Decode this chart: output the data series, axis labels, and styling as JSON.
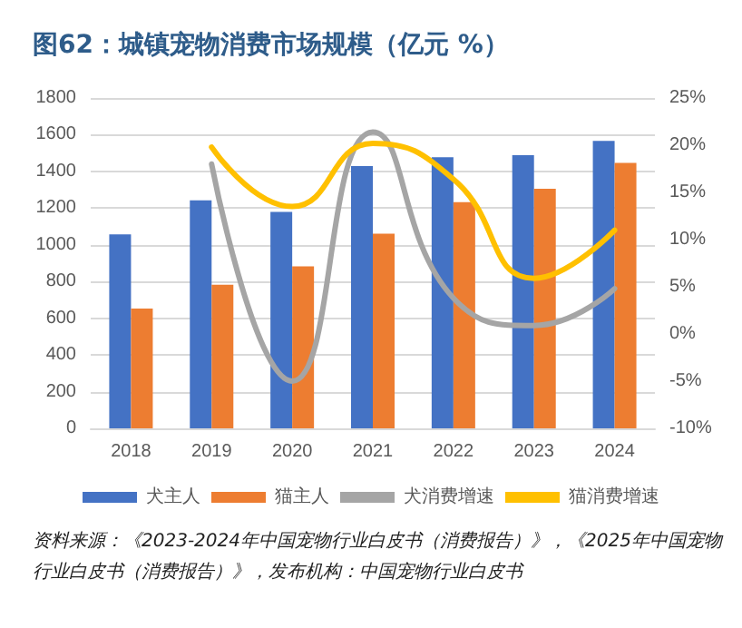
{
  "chart_data": {
    "type": "bar",
    "title": "图62：城镇宠物消费市场规模（亿元  %）",
    "categories": [
      "2018",
      "2019",
      "2020",
      "2021",
      "2022",
      "2023",
      "2024"
    ],
    "series": [
      {
        "name": "犬主人",
        "color": "#4472c4",
        "values": [
          1057,
          1243,
          1180,
          1429,
          1477,
          1488,
          1566
        ]
      },
      {
        "name": "猫主人",
        "color": "#ed7d31",
        "values": [
          653,
          783,
          883,
          1061,
          1232,
          1306,
          1447
        ]
      },
      {
        "name": "犬消费增速",
        "type": "line",
        "axis": "y2",
        "color": "#a5a5a5",
        "values": [
          null,
          18.0,
          -5.0,
          21.4,
          3.8,
          0.9,
          4.8
        ]
      },
      {
        "name": "猫消费增速",
        "type": "line",
        "axis": "y2",
        "color": "#ffc000",
        "values": [
          null,
          19.8,
          13.5,
          20.2,
          16.4,
          5.9,
          11.0
        ]
      }
    ],
    "ylim": [
      0,
      1800
    ],
    "yticks": [
      0,
      200,
      400,
      600,
      800,
      1000,
      1200,
      1400,
      1600,
      1800
    ],
    "y2lim": [
      -10,
      25
    ],
    "y2ticks": [
      {
        "value": -10,
        "label": "-10%"
      },
      {
        "value": -5,
        "label": "-5%"
      },
      {
        "value": 0,
        "label": "0%"
      },
      {
        "value": 5,
        "label": "5%"
      },
      {
        "value": 10,
        "label": "10%"
      },
      {
        "value": 15,
        "label": "15%"
      },
      {
        "value": 20,
        "label": "20%"
      },
      {
        "value": 25,
        "label": "25%"
      }
    ],
    "grid": "y",
    "legend": "bottom",
    "marker": "none",
    "line_style": "solid",
    "annotations": [
      "资料来源：《2023-2024年中国宠物行业白皮书（消费报告）》，《2025年中国宠物行业白皮书（消费报告）》，发布机构：中国宠物行业白皮书"
    ]
  }
}
